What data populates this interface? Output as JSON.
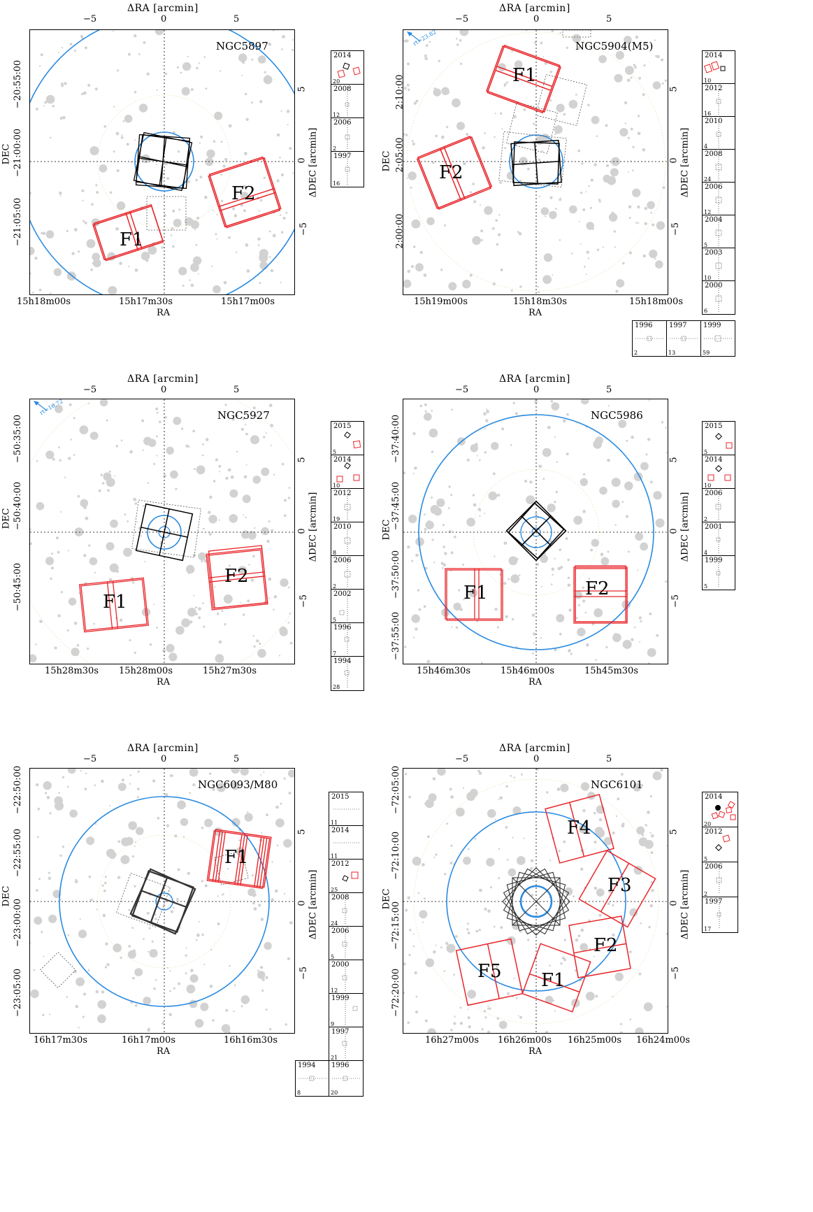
{
  "colors": {
    "red": "#e8262b",
    "blue": "#2a8ae0",
    "black": "#000000",
    "star_gray": "#d2d2d2"
  },
  "axis_titles": {
    "top": "ΔRA [arcmin]",
    "bottom": "RA",
    "left": "DEC",
    "right": "ΔDEC [arcmin]"
  },
  "delta_ticks": {
    "neg5": "−5",
    "zero": "0",
    "pos5": "5"
  },
  "panels": [
    {
      "name": "NGC5897",
      "ra_ticks": [
        "15h18m00s",
        "15h17m30s",
        "15h17m00s"
      ],
      "dec_ticks": [
        "−20:55:00",
        "−21:00:00",
        "−21:05:00"
      ],
      "fields": [
        "F1",
        "F2"
      ],
      "epochs": [
        {
          "year": "2014",
          "count": "20"
        },
        {
          "year": "2008",
          "count": "12"
        },
        {
          "year": "2006",
          "count": "2"
        },
        {
          "year": "1997",
          "count": "16"
        }
      ]
    },
    {
      "name": "NGC5904(M5)",
      "annotation": "rt=23.82'",
      "ra_ticks": [
        "15h19m00s",
        "15h18m30s",
        "15h18m00s"
      ],
      "dec_ticks": [
        "2:10:00",
        "2:05:00",
        "2:00:00"
      ],
      "fields": [
        "F1",
        "F2"
      ],
      "epochs": [
        {
          "year": "2014",
          "count": "10"
        },
        {
          "year": "2012",
          "count": "16"
        },
        {
          "year": "2010",
          "count": "4"
        },
        {
          "year": "2008",
          "count": "24"
        },
        {
          "year": "2006",
          "count": "12"
        },
        {
          "year": "2004",
          "count": "5"
        },
        {
          "year": "2003",
          "count": "10"
        },
        {
          "year": "2000",
          "count": "6"
        },
        {
          "year": "1996",
          "count": "2"
        },
        {
          "year": "1997",
          "count": "13"
        },
        {
          "year": "1999",
          "count": "59"
        }
      ]
    },
    {
      "name": "NGC5927",
      "annotation": "rt=16.72'",
      "ra_ticks": [
        "15h28m30s",
        "15h28m00s",
        "15h27m30s"
      ],
      "dec_ticks": [
        "−50:35:00",
        "−50:40:00",
        "−50:45:00"
      ],
      "fields": [
        "F1",
        "F2"
      ],
      "epochs": [
        {
          "year": "2015",
          "count": "5"
        },
        {
          "year": "2014",
          "count": "10"
        },
        {
          "year": "2012",
          "count": "19"
        },
        {
          "year": "2010",
          "count": "8"
        },
        {
          "year": "2006",
          "count": "2"
        },
        {
          "year": "2002",
          "count": "5"
        },
        {
          "year": "1996",
          "count": "7"
        },
        {
          "year": "1994",
          "count": "28"
        }
      ]
    },
    {
      "name": "NGC5986",
      "ra_ticks": [
        "15h46m30s",
        "15h46m00s",
        "15h45m30s"
      ],
      "dec_ticks": [
        "−37:40:00",
        "−37:45:00",
        "−37:50:00",
        "−37:55:00"
      ],
      "fields": [
        "F1",
        "F2"
      ],
      "epochs": [
        {
          "year": "2015",
          "count": "5"
        },
        {
          "year": "2014",
          "count": "10"
        },
        {
          "year": "2006",
          "count": "2"
        },
        {
          "year": "2001",
          "count": "4"
        },
        {
          "year": "1999",
          "count": "5"
        }
      ]
    },
    {
      "name": "NGC6093/M80",
      "ra_ticks": [
        "16h17m30s",
        "16h17m00s",
        "16h16m30s"
      ],
      "dec_ticks": [
        "−22:50:00",
        "−22:55:00",
        "−23:00:00",
        "−23:05:00"
      ],
      "fields": [
        "F1"
      ],
      "epochs": [
        {
          "year": "2015",
          "count": "11"
        },
        {
          "year": "2014",
          "count": "11"
        },
        {
          "year": "2012",
          "count": "25"
        },
        {
          "year": "2008",
          "count": "24"
        },
        {
          "year": "2006",
          "count": "5"
        },
        {
          "year": "2000",
          "count": "12"
        },
        {
          "year": "1999",
          "count": "9"
        },
        {
          "year": "1997",
          "count": "21"
        },
        {
          "year": "1994",
          "count": "8"
        },
        {
          "year": "1996",
          "count": "20"
        }
      ]
    },
    {
      "name": "NGC6101",
      "ra_ticks": [
        "16h27m00s",
        "16h26m00s",
        "16h25m00s",
        "16h24m00s"
      ],
      "dec_ticks": [
        "−72:05:00",
        "−72:10:00",
        "−72:15:00",
        "−72:20:00"
      ],
      "fields": [
        "F1",
        "F2",
        "F3",
        "F4",
        "F5"
      ],
      "epochs": [
        {
          "year": "2014",
          "count": "20"
        },
        {
          "year": "2012",
          "count": "5"
        },
        {
          "year": "2006",
          "count": "2"
        },
        {
          "year": "1997",
          "count": "17"
        }
      ]
    }
  ]
}
